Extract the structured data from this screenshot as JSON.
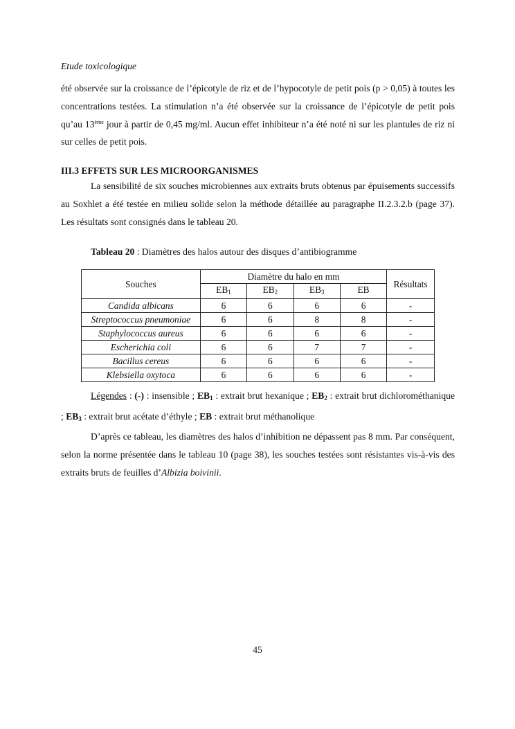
{
  "header": "Etude toxicologique",
  "p1": {
    "a": "été observée sur la croissance de l’épicotyle de riz et de l’hypocotyle de petit pois (p > 0,05) à toutes les concentrations testées. La stimulation n’a été observée sur la croissance de l’épicotyle de petit pois qu’au 13",
    "sup": "ème",
    "b": " jour à partir de 0,45 mg/ml. Aucun effet inhibiteur n’a été noté ni sur les plantules de riz ni sur celles de petit pois."
  },
  "heading": "III.3 EFFETS SUR LES MICROORGANISMES",
  "p2": "La sensibilité de six souches microbiennes aux extraits bruts obtenus par épuisements successifs au Soxhlet a été testée en milieu solide selon la méthode détaillée au paragraphe II.2.3.2.b (page 37). Les résultats sont consignés dans le tableau 20.",
  "caption": {
    "label": "Tableau 20",
    "text": " : Diamètres des halos autour des disques d’antibiogramme"
  },
  "table": {
    "h_souches": "Souches",
    "h_diam": "Diamètre du halo en mm",
    "h_res": "Résultats",
    "cols": [
      {
        "t": "EB",
        "s": "1"
      },
      {
        "t": "EB",
        "s": "2"
      },
      {
        "t": "EB",
        "s": "3"
      },
      {
        "t": "EB",
        "s": ""
      }
    ],
    "rows": [
      {
        "name": "Candida albicans",
        "v": [
          "6",
          "6",
          "6",
          "6"
        ],
        "r": "-"
      },
      {
        "name": "Streptococcus pneumoniae",
        "v": [
          "6",
          "6",
          "8",
          "8"
        ],
        "r": "-"
      },
      {
        "name": "Staphylococcus aureus",
        "v": [
          "6",
          "6",
          "6",
          "6"
        ],
        "r": "-"
      },
      {
        "name": "Escherichia coli",
        "v": [
          "6",
          "6",
          "7",
          "7"
        ],
        "r": "-"
      },
      {
        "name": "Bacillus cereus",
        "v": [
          "6",
          "6",
          "6",
          "6"
        ],
        "r": "-"
      },
      {
        "name": "Klebsiella oxytoca",
        "v": [
          "6",
          "6",
          "6",
          "6"
        ],
        "r": "-"
      }
    ]
  },
  "legend": {
    "title": "Légendes",
    "sep": " : ",
    "items": [
      {
        "k": "(-)",
        "s": "",
        "d": " : insensible ; "
      },
      {
        "k": "EB",
        "s": "1",
        "d": " : extrait brut hexanique ; "
      },
      {
        "k": "EB",
        "s": "2",
        "d": " : extrait brut dichlorométhanique ; "
      },
      {
        "k": "EB",
        "s": "3",
        "d": " : extrait brut acétate d’éthyle ; "
      },
      {
        "k": "EB",
        "s": "",
        "d": " : extrait brut méthanolique"
      }
    ]
  },
  "p3": {
    "a": "D’après ce tableau, les diamètres des halos d’inhibition ne dépassent pas 8 mm. Par conséquent, selon la norme présentée dans le tableau 10 (page 38), les souches testées sont résistantes vis-à-vis des extraits bruts de feuilles d’",
    "i": "Albizia boivinii",
    "b": "."
  },
  "page_number": "45"
}
